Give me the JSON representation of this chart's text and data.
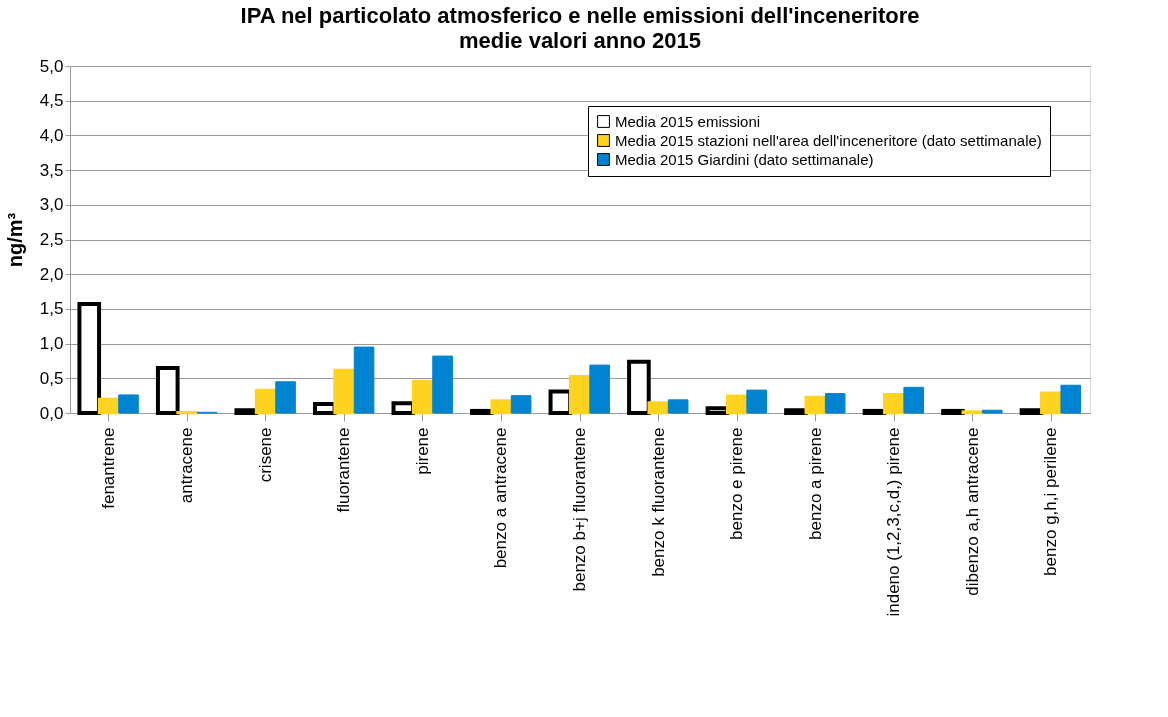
{
  "chart_data": {
    "type": "bar",
    "title": "IPA nel particolato atmosferico e nelle emissioni dell'inceneritore",
    "subtitle": "medie valori anno 2015",
    "ylabel": "ng/m³",
    "categories": [
      "fenantrene",
      "antracene",
      "crisene",
      "fluorantene",
      "pirene",
      "benzo a antracene",
      "benzo b+j fluorantene",
      "benzo k fluorantene",
      "benzo e pirene",
      "benzo a pirene",
      "indeno (1,2,3,c,d,) pirene",
      "dibenzo a,h antracene",
      "benzo g,h,i perilene"
    ],
    "series": [
      {
        "name": "Media 2015 emissioni",
        "color": "#ffffff",
        "values": [
          1.57,
          0.65,
          0.04,
          0.13,
          0.14,
          0.03,
          0.31,
          0.74,
          0.07,
          0.04,
          0.03,
          0.03,
          0.04
        ]
      },
      {
        "name": "Media 2015 stazioni nell'area dell'inceneritore (dato settimanale)",
        "color": "#ffd320",
        "values": [
          0.2,
          0.01,
          0.33,
          0.62,
          0.46,
          0.18,
          0.53,
          0.15,
          0.25,
          0.23,
          0.27,
          0.02,
          0.29
        ]
      },
      {
        "name": "Media 2015 Giardini (dato settimanale)",
        "color": "#0084d1",
        "values": [
          0.26,
          0.01,
          0.45,
          0.95,
          0.82,
          0.25,
          0.69,
          0.19,
          0.33,
          0.28,
          0.37,
          0.04,
          0.4
        ]
      }
    ],
    "ylim": [
      0,
      5
    ],
    "yticks": [
      {
        "value": 0,
        "label": "0,0"
      },
      {
        "value": 0.5,
        "label": "0,5"
      },
      {
        "value": 1,
        "label": "1,0"
      },
      {
        "value": 1.5,
        "label": "1,5"
      },
      {
        "value": 2,
        "label": "2,0"
      },
      {
        "value": 2.5,
        "label": "2,5"
      },
      {
        "value": 3,
        "label": "3,0"
      },
      {
        "value": 3.5,
        "label": "3,5"
      },
      {
        "value": 4,
        "label": "4,0"
      },
      {
        "value": 4.5,
        "label": "4,5"
      },
      {
        "value": 5,
        "label": "5,0"
      }
    ],
    "grid": "y",
    "legend": "top right"
  }
}
